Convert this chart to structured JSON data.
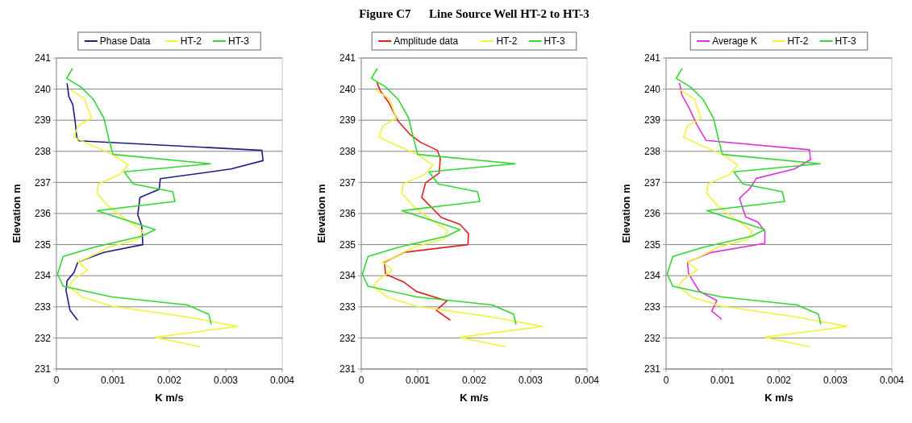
{
  "chart_data": [
    {
      "type": "line",
      "xlabel": "K m/s",
      "ylabel": "Elevation m",
      "xlim": [
        0,
        0.004
      ],
      "xticks": [
        0,
        0.001,
        0.002,
        0.003,
        0.004
      ],
      "ylim": [
        231,
        241
      ],
      "yticks": [
        231,
        232,
        233,
        234,
        235,
        236,
        237,
        238,
        239,
        240,
        241
      ],
      "grid": "y",
      "legend": "top",
      "series": [
        {
          "name": "Phase Data",
          "color": "#1c1c8a",
          "x": [
            0.00019,
            0.00022,
            0.00029,
            0.00033,
            0.00036,
            0.0004,
            0.00364,
            0.00366,
            0.00309,
            0.00184,
            0.00182,
            0.00148,
            0.00144,
            0.00151,
            0.00153,
            0.00084,
            0.00038,
            0.00031,
            0.00019,
            0.00017,
            0.00024,
            0.00037
          ],
          "values": [
            240.17,
            239.76,
            239.5,
            238.98,
            238.46,
            238.34,
            238.03,
            237.7,
            237.43,
            237.12,
            236.78,
            236.52,
            235.96,
            235.61,
            235.0,
            234.75,
            234.44,
            234.1,
            233.84,
            233.53,
            232.89,
            232.58
          ]
        },
        {
          "name": "HT-2",
          "color": "#f2f23a",
          "x": [
            0.00025,
            0.0005,
            0.00062,
            0.00038,
            0.00031,
            0.00055,
            0.001,
            0.00127,
            0.00112,
            0.00074,
            0.00072,
            0.00093,
            0.00122,
            0.00153,
            0.00146,
            0.00093,
            0.00055,
            0.00038,
            0.00055,
            0.00031,
            0.00022,
            0.00045,
            0.00098,
            0.00232,
            0.00321,
            0.00175,
            0.00254
          ],
          "values": [
            239.98,
            239.68,
            239.07,
            238.81,
            238.46,
            238.25,
            237.9,
            237.56,
            237.25,
            236.95,
            236.65,
            236.22,
            235.83,
            235.44,
            235.18,
            234.92,
            234.57,
            234.44,
            234.18,
            233.88,
            233.66,
            233.32,
            233.02,
            232.67,
            232.37,
            232.02,
            231.72
          ]
        },
        {
          "name": "HT-3",
          "color": "#33d633",
          "x": [
            0.00028,
            0.00018,
            0.00043,
            0.00065,
            0.00084,
            0.00093,
            0.001,
            0.00273,
            0.0012,
            0.00136,
            0.00206,
            0.0021,
            0.00072,
            0.00175,
            0.00151,
            0.00067,
            0.00012,
            2e-05,
            0.00012,
            0.00098,
            0.00232,
            0.0027,
            0.00274
          ],
          "values": [
            240.65,
            240.35,
            240.07,
            239.68,
            239.07,
            238.38,
            237.9,
            237.6,
            237.34,
            236.95,
            236.7,
            236.39,
            236.09,
            235.48,
            235.27,
            234.92,
            234.62,
            234.05,
            233.66,
            233.32,
            233.06,
            232.76,
            232.45
          ]
        }
      ]
    },
    {
      "type": "line",
      "xlabel": "K m/s",
      "ylabel": "Elevation m",
      "xlim": [
        0,
        0.004
      ],
      "xticks": [
        0,
        0.001,
        0.002,
        0.003,
        0.004
      ],
      "ylim": [
        231,
        241
      ],
      "yticks": [
        231,
        232,
        233,
        234,
        235,
        236,
        237,
        238,
        239,
        240,
        241
      ],
      "grid": "y",
      "legend": "top",
      "title": "Figure C7      Line Source Well HT-2 to HT-3",
      "series": [
        {
          "name": "Amplitude data",
          "color": "#e02020",
          "x": [
            0.00028,
            0.00034,
            0.00048,
            0.00065,
            0.00086,
            0.00105,
            0.00135,
            0.0014,
            0.00138,
            0.00114,
            0.00107,
            0.00142,
            0.00175,
            0.0019,
            0.00189,
            0.00076,
            0.00041,
            0.00043,
            0.00076,
            0.00098,
            0.00152,
            0.00133,
            0.00157
          ],
          "values": [
            240.2,
            239.94,
            239.59,
            238.98,
            238.55,
            238.29,
            238.03,
            237.77,
            237.3,
            236.99,
            236.52,
            235.87,
            235.65,
            235.35,
            235.0,
            234.75,
            234.44,
            234.05,
            233.79,
            233.49,
            233.19,
            232.89,
            232.58
          ]
        },
        {
          "name": "HT-2",
          "color": "#f2f23a",
          "x": [
            0.00025,
            0.0005,
            0.00062,
            0.00038,
            0.00031,
            0.00055,
            0.001,
            0.00127,
            0.00112,
            0.00074,
            0.00072,
            0.00093,
            0.00122,
            0.00153,
            0.00146,
            0.00093,
            0.00055,
            0.00038,
            0.00055,
            0.00031,
            0.00022,
            0.00045,
            0.00098,
            0.00232,
            0.00321,
            0.00175,
            0.00254
          ],
          "values": [
            239.98,
            239.68,
            239.07,
            238.81,
            238.46,
            238.25,
            237.9,
            237.56,
            237.25,
            236.95,
            236.65,
            236.22,
            235.83,
            235.44,
            235.18,
            234.92,
            234.57,
            234.44,
            234.18,
            233.88,
            233.66,
            233.32,
            233.02,
            232.67,
            232.37,
            232.02,
            231.72
          ]
        },
        {
          "name": "HT-3",
          "color": "#33d633",
          "x": [
            0.00028,
            0.00018,
            0.00043,
            0.00065,
            0.00084,
            0.00093,
            0.001,
            0.00273,
            0.0012,
            0.00136,
            0.00206,
            0.0021,
            0.00072,
            0.00175,
            0.00151,
            0.00067,
            0.00012,
            2e-05,
            0.00012,
            0.00098,
            0.00232,
            0.0027,
            0.00274
          ],
          "values": [
            240.65,
            240.35,
            240.07,
            239.68,
            239.07,
            238.38,
            237.9,
            237.6,
            237.34,
            236.95,
            236.7,
            236.39,
            236.09,
            235.48,
            235.27,
            234.92,
            234.62,
            234.05,
            233.66,
            233.32,
            233.06,
            232.76,
            232.45
          ]
        }
      ]
    },
    {
      "type": "line",
      "xlabel": "K m/s",
      "ylabel": "Elevation m",
      "xlim": [
        0,
        0.004
      ],
      "xticks": [
        0,
        0.001,
        0.002,
        0.003,
        0.004
      ],
      "ylim": [
        231,
        241
      ],
      "yticks": [
        231,
        232,
        233,
        234,
        235,
        236,
        237,
        238,
        239,
        240,
        241
      ],
      "grid": "y",
      "legend": "top",
      "series": [
        {
          "name": "Average K",
          "color": "#dd33dd",
          "x": [
            0.00024,
            0.00028,
            0.00042,
            0.00054,
            0.00071,
            0.00254,
            0.00256,
            0.00227,
            0.0016,
            0.00148,
            0.0013,
            0.00141,
            0.00163,
            0.00175,
            0.00175,
            0.00078,
            0.00038,
            0.0004,
            0.00059,
            0.0009,
            0.00081,
            0.00098
          ],
          "values": [
            240.18,
            239.82,
            239.35,
            238.88,
            238.35,
            238.05,
            237.73,
            237.43,
            237.13,
            236.79,
            236.49,
            235.89,
            235.72,
            235.42,
            235.04,
            234.74,
            234.44,
            234.06,
            233.5,
            233.2,
            232.86,
            232.61
          ]
        },
        {
          "name": "HT-2",
          "color": "#f2f23a",
          "x": [
            0.00025,
            0.0005,
            0.00062,
            0.00038,
            0.00031,
            0.00055,
            0.001,
            0.00127,
            0.00112,
            0.00074,
            0.00072,
            0.00093,
            0.00122,
            0.00153,
            0.00146,
            0.00093,
            0.00055,
            0.00038,
            0.00055,
            0.00031,
            0.00022,
            0.00045,
            0.00098,
            0.00232,
            0.00321,
            0.00175,
            0.00254
          ],
          "values": [
            239.98,
            239.68,
            239.07,
            238.81,
            238.46,
            238.25,
            237.9,
            237.56,
            237.25,
            236.95,
            236.65,
            236.22,
            235.83,
            235.44,
            235.18,
            234.92,
            234.57,
            234.44,
            234.18,
            233.88,
            233.66,
            233.32,
            233.02,
            232.67,
            232.37,
            232.02,
            231.72
          ]
        },
        {
          "name": "HT-3",
          "color": "#33d633",
          "x": [
            0.00028,
            0.00018,
            0.00043,
            0.00065,
            0.00084,
            0.00093,
            0.001,
            0.00273,
            0.0012,
            0.00136,
            0.00206,
            0.0021,
            0.00072,
            0.00175,
            0.00151,
            0.00067,
            0.00012,
            2e-05,
            0.00012,
            0.00098,
            0.00232,
            0.0027,
            0.00274
          ],
          "values": [
            240.65,
            240.35,
            240.07,
            239.68,
            239.07,
            238.38,
            237.9,
            237.6,
            237.34,
            236.95,
            236.7,
            236.39,
            236.09,
            235.48,
            235.27,
            234.92,
            234.62,
            234.05,
            233.66,
            233.32,
            233.06,
            232.76,
            232.45
          ]
        }
      ]
    }
  ]
}
